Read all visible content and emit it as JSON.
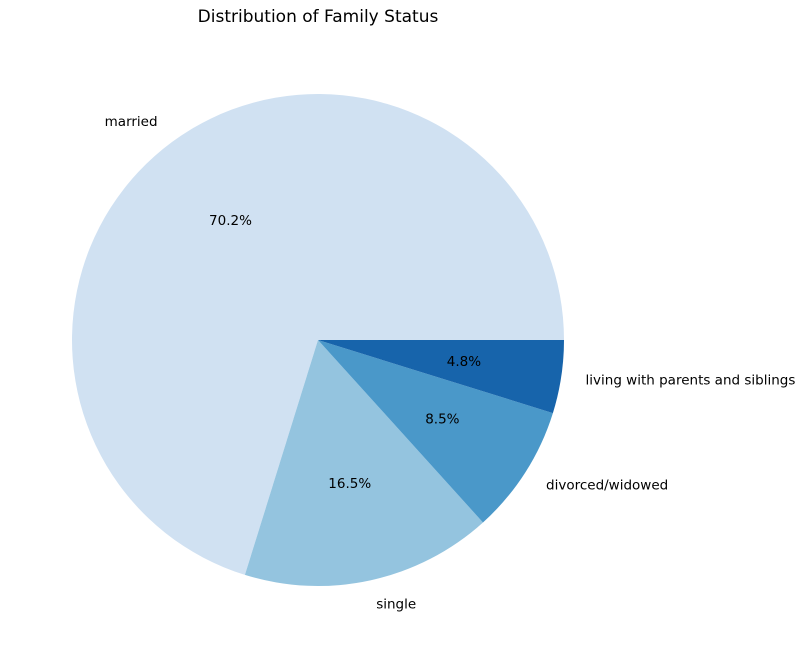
{
  "chart_data": {
    "type": "pie",
    "title": "Distribution of Family Status",
    "categories": [
      "married",
      "single",
      "divorced/widowed",
      "living with parents and siblings"
    ],
    "values": [
      70.2,
      16.5,
      8.5,
      4.8
    ],
    "value_labels": [
      "70.2%",
      "16.5%",
      "8.5%",
      "4.8%"
    ],
    "colors": [
      "#d0e1f2",
      "#94c4df",
      "#4a98c9",
      "#1764ab"
    ],
    "start_angle_deg": 0,
    "direction": "counterclockwise",
    "legend": "none"
  }
}
